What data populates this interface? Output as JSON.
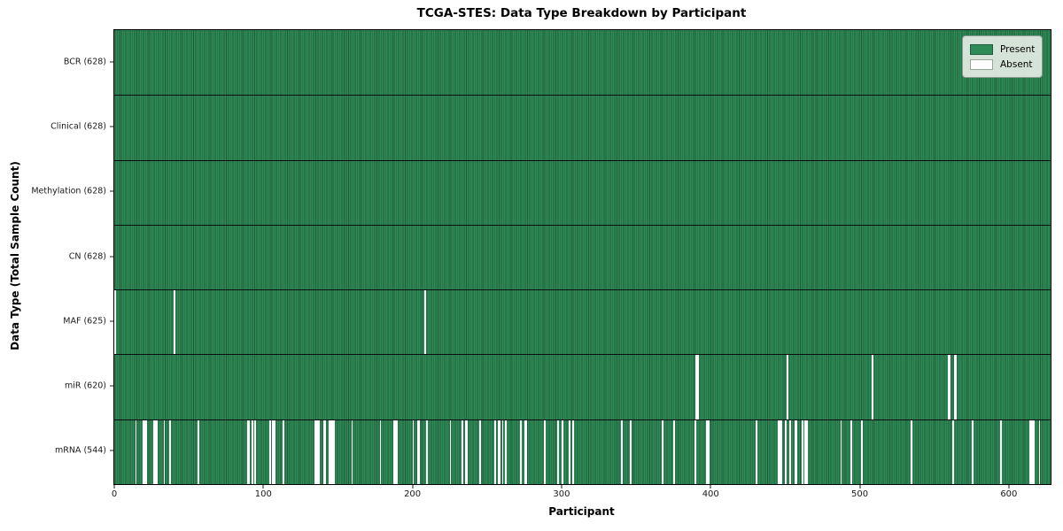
{
  "chart_data": {
    "type": "heatmap",
    "title": "TCGA-STES: Data Type Breakdown by Participant",
    "xlabel": "Participant",
    "ylabel": "Data Type (Total Sample Count)",
    "x_ticks": [
      0,
      100,
      200,
      300,
      400,
      500,
      600
    ],
    "xlim": [
      0,
      628
    ],
    "n_participants": 628,
    "grid": false,
    "legend": {
      "position": "upper right",
      "entries": [
        {
          "label": "Present",
          "color": "#2e8b57"
        },
        {
          "label": "Absent",
          "color": "#ffffff"
        }
      ]
    },
    "colors": {
      "present": "#2e8b57",
      "present_edge": "#1e5c39",
      "absent": "#ffffff",
      "axis": "#000000"
    },
    "rows": [
      {
        "label": "BCR (628)",
        "name": "BCR",
        "present_count": 628,
        "absent_count": 0,
        "absent_participants": []
      },
      {
        "label": "Clinical (628)",
        "name": "Clinical",
        "present_count": 628,
        "absent_count": 0,
        "absent_participants": []
      },
      {
        "label": "Methylation (628)",
        "name": "Methylation",
        "present_count": 628,
        "absent_count": 0,
        "absent_participants": []
      },
      {
        "label": "CN (628)",
        "name": "CN",
        "present_count": 628,
        "absent_count": 0,
        "absent_participants": []
      },
      {
        "label": "MAF (625)",
        "name": "MAF",
        "present_count": 625,
        "absent_count": 3,
        "absent_participants": [
          0,
          40,
          208
        ]
      },
      {
        "label": "miR (620)",
        "name": "miR",
        "present_count": 620,
        "absent_count": 8,
        "absent_participants": [
          390,
          391,
          451,
          508,
          559,
          560,
          563,
          564
        ]
      },
      {
        "label": "mRNA (544)",
        "name": "mRNA",
        "present_count": 544,
        "absent_count": 84,
        "absent_participants": [
          14,
          19,
          20,
          21,
          26,
          27,
          28,
          33,
          37,
          56,
          89,
          90,
          92,
          94,
          104,
          106,
          107,
          113,
          134,
          135,
          136,
          137,
          140,
          141,
          144,
          145,
          146,
          147,
          159,
          178,
          187,
          188,
          189,
          200,
          203,
          204,
          209,
          225,
          233,
          235,
          236,
          245,
          255,
          257,
          258,
          260,
          262,
          272,
          275,
          276,
          288,
          297,
          300,
          305,
          307,
          340,
          346,
          367,
          375,
          389,
          397,
          398,
          430,
          445,
          446,
          447,
          450,
          453,
          456,
          457,
          461,
          463,
          464,
          487,
          494,
          501,
          534,
          562,
          575,
          594,
          614,
          615,
          616,
          620
        ]
      }
    ]
  }
}
